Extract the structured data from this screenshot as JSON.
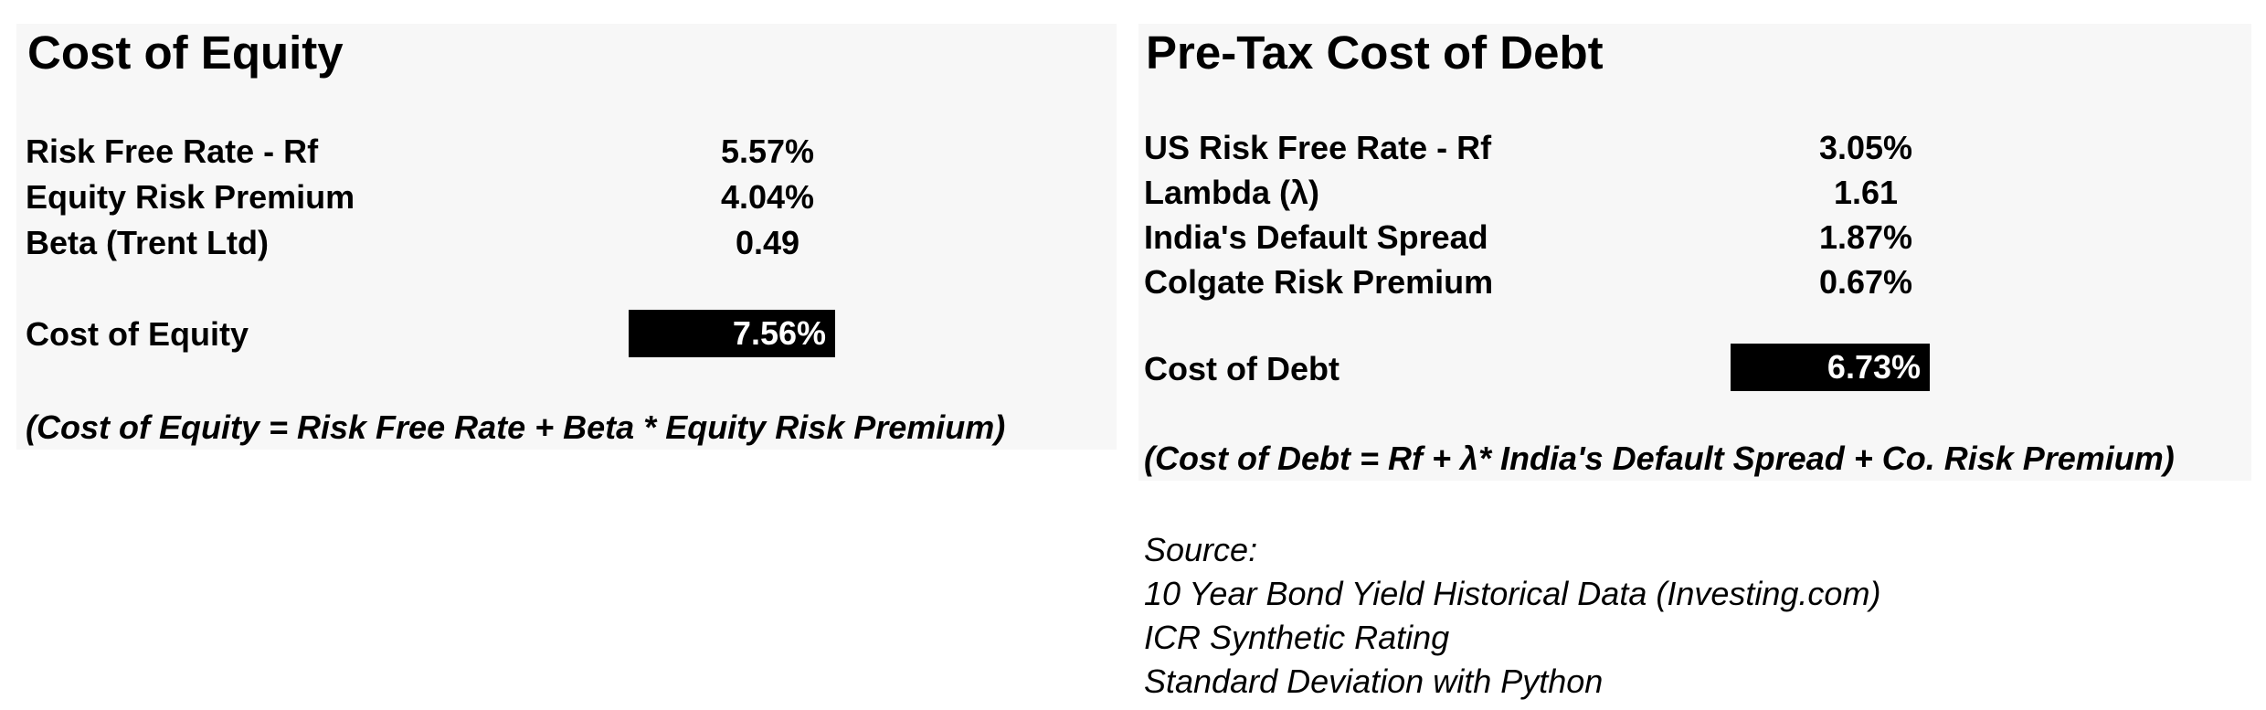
{
  "cost_of_equity": {
    "title": "Cost of Equity",
    "rows": [
      {
        "label": "Risk Free Rate - Rf",
        "value": "5.57%"
      },
      {
        "label": "Equity Risk Premium",
        "value": "4.04%"
      },
      {
        "label": "Beta (Trent Ltd)",
        "value": "0.49"
      }
    ],
    "result": {
      "label": "Cost of Equity",
      "value": "7.56%"
    },
    "formula": "(Cost of Equity = Risk Free Rate + Beta * Equity Risk Premium)"
  },
  "cost_of_debt": {
    "title": "Pre-Tax Cost of Debt",
    "rows": [
      {
        "label": "US Risk Free Rate - Rf",
        "value": "3.05%"
      },
      {
        "label": "Lambda (λ)",
        "value": "1.61"
      },
      {
        "label": "India's Default Spread",
        "value": "1.87%"
      },
      {
        "label": "Colgate Risk Premium",
        "value": "0.67%"
      }
    ],
    "result": {
      "label": "Cost of Debt",
      "value": "6.73%"
    },
    "formula": "(Cost of Debt = Rf + λ* India's Default Spread + Co. Risk Premium)"
  },
  "sources": {
    "heading": "Source:",
    "items": [
      "10 Year Bond Yield Historical Data (Investing.com)",
      "ICR Synthetic Rating",
      "Standard Deviation with Python"
    ]
  },
  "colors": {
    "panel_background": "#f7f7f7",
    "result_background": "#000000",
    "result_text": "#ffffff"
  }
}
